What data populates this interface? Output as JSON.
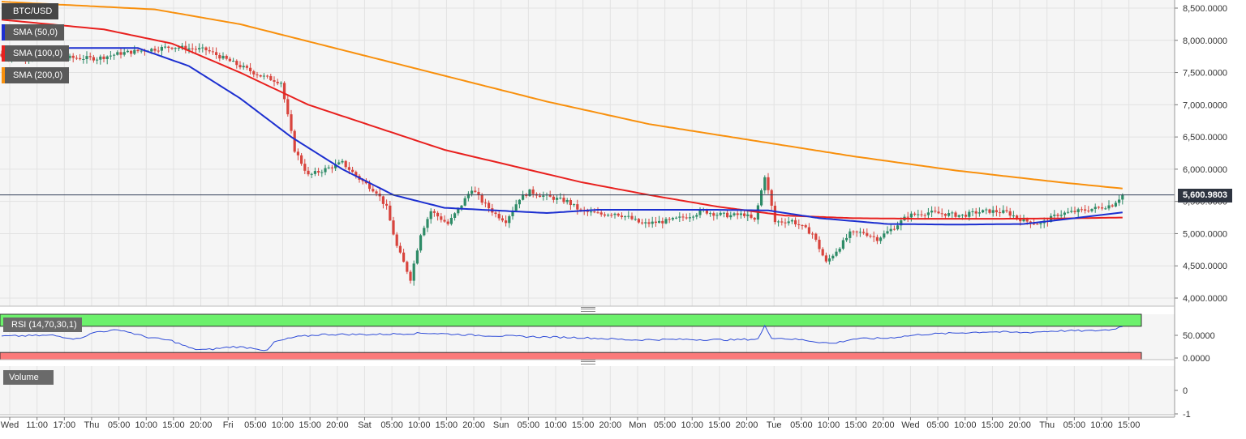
{
  "symbol": "BTC/USD",
  "indicators": {
    "sma50": {
      "label": "SMA (50,0)",
      "color": "#1c2fd0"
    },
    "sma100": {
      "label": "SMA (100,0)",
      "color": "#e8201e"
    },
    "sma200": {
      "label": "SMA (200,0)",
      "color": "#f8900d"
    }
  },
  "panes": {
    "rsi_label": "RSI (14,70,30,1)",
    "volume_label": "Volume"
  },
  "current_price": "5,600.9803",
  "colors": {
    "up": "#2e8b67",
    "down": "#d8443d",
    "rsi_line": "#2f4cd8",
    "overbought_band": "#6cf16c",
    "oversold_band": "#fb7a7a",
    "plot_bg": "#f5f5f5",
    "grid": "#e2e2e2"
  },
  "chart_data": {
    "type": "candlestick",
    "title": "BTC/USD",
    "price_axis": {
      "ylim": [
        3800,
        8700
      ],
      "ticks": [
        "8,500.0000",
        "8,000.0000",
        "7,500.0000",
        "7,000.0000",
        "6,500.0000",
        "6,000.0000",
        "5,500.0000",
        "5,000.0000",
        "4,500.0000",
        "4,000.0000"
      ]
    },
    "rsi_axis": {
      "ylim": [
        0,
        100
      ],
      "ticks": [
        "50.0000",
        "0.0000"
      ],
      "overbought": 70,
      "oversold": 30
    },
    "volume_axis": {
      "ticks": [
        "0",
        "-1"
      ]
    },
    "x_ticks": [
      "Wed",
      "11:00",
      "17:00",
      "Thu",
      "05:00",
      "10:00",
      "15:00",
      "20:00",
      "Fri",
      "05:00",
      "10:00",
      "15:00",
      "20:00",
      "Sat",
      "05:00",
      "10:00",
      "15:00",
      "20:00",
      "Sun",
      "05:00",
      "10:00",
      "15:00",
      "20:00",
      "Mon",
      "05:00",
      "10:00",
      "15:00",
      "20:00",
      "Tue",
      "05:00",
      "10:00",
      "15:00",
      "20:00",
      "Wed",
      "05:00",
      "10:00",
      "15:00",
      "20:00",
      "Thu",
      "05:00",
      "10:00",
      "15:00"
    ],
    "close_anchors": [
      [
        0,
        7750
      ],
      [
        28,
        7720
      ],
      [
        35,
        7800
      ],
      [
        50,
        7900
      ],
      [
        60,
        7850
      ],
      [
        68,
        7650
      ],
      [
        76,
        7450
      ],
      [
        82,
        7350
      ],
      [
        86,
        6300
      ],
      [
        90,
        5900
      ],
      [
        95,
        6000
      ],
      [
        100,
        6100
      ],
      [
        105,
        5850
      ],
      [
        110,
        5650
      ],
      [
        113,
        5400
      ],
      [
        116,
        4800
      ],
      [
        120,
        4300
      ],
      [
        123,
        5000
      ],
      [
        126,
        5350
      ],
      [
        131,
        5150
      ],
      [
        135,
        5450
      ],
      [
        138,
        5700
      ],
      [
        141,
        5500
      ],
      [
        145,
        5300
      ],
      [
        148,
        5200
      ],
      [
        152,
        5550
      ],
      [
        155,
        5650
      ],
      [
        158,
        5600
      ],
      [
        162,
        5550
      ],
      [
        166,
        5500
      ],
      [
        170,
        5350
      ],
      [
        176,
        5300
      ],
      [
        180,
        5320
      ],
      [
        184,
        5250
      ],
      [
        188,
        5150
      ],
      [
        196,
        5200
      ],
      [
        202,
        5280
      ],
      [
        206,
        5350
      ],
      [
        210,
        5300
      ],
      [
        214,
        5280
      ],
      [
        218,
        5300
      ],
      [
        221,
        5200
      ],
      [
        224,
        5900
      ],
      [
        227,
        5180
      ],
      [
        232,
        5200
      ],
      [
        238,
        5000
      ],
      [
        242,
        4550
      ],
      [
        246,
        4800
      ],
      [
        249,
        5000
      ],
      [
        253,
        5020
      ],
      [
        257,
        4920
      ],
      [
        262,
        5100
      ],
      [
        266,
        5280
      ],
      [
        272,
        5330
      ],
      [
        278,
        5300
      ],
      [
        282,
        5280
      ],
      [
        286,
        5330
      ],
      [
        290,
        5350
      ],
      [
        295,
        5330
      ],
      [
        300,
        5200
      ],
      [
        305,
        5150
      ],
      [
        310,
        5300
      ],
      [
        316,
        5350
      ],
      [
        322,
        5400
      ],
      [
        326,
        5450
      ],
      [
        329,
        5600
      ]
    ],
    "rsi_anchors": [
      [
        0,
        48
      ],
      [
        15,
        50
      ],
      [
        22,
        42
      ],
      [
        28,
        58
      ],
      [
        35,
        62
      ],
      [
        42,
        47
      ],
      [
        50,
        38
      ],
      [
        56,
        20
      ],
      [
        60,
        18
      ],
      [
        68,
        25
      ],
      [
        74,
        22
      ],
      [
        78,
        16
      ],
      [
        80,
        35
      ],
      [
        86,
        46
      ],
      [
        94,
        52
      ],
      [
        110,
        52
      ],
      [
        125,
        55
      ],
      [
        140,
        50
      ],
      [
        155,
        47
      ],
      [
        170,
        45
      ],
      [
        185,
        40
      ],
      [
        200,
        41
      ],
      [
        215,
        40
      ],
      [
        222,
        42
      ],
      [
        224,
        70
      ],
      [
        226,
        45
      ],
      [
        235,
        40
      ],
      [
        240,
        35
      ],
      [
        244,
        32
      ],
      [
        250,
        42
      ],
      [
        260,
        44
      ],
      [
        270,
        52
      ],
      [
        280,
        55
      ],
      [
        290,
        58
      ],
      [
        300,
        56
      ],
      [
        310,
        60
      ],
      [
        320,
        60
      ],
      [
        326,
        63
      ],
      [
        329,
        70
      ]
    ],
    "sma50_anchors": [
      [
        0,
        7800
      ],
      [
        20,
        7880
      ],
      [
        40,
        7880
      ],
      [
        55,
        7600
      ],
      [
        70,
        7100
      ],
      [
        85,
        6500
      ],
      [
        100,
        6000
      ],
      [
        115,
        5600
      ],
      [
        130,
        5400
      ],
      [
        145,
        5360
      ],
      [
        160,
        5320
      ],
      [
        175,
        5370
      ],
      [
        195,
        5370
      ],
      [
        210,
        5370
      ],
      [
        225,
        5360
      ],
      [
        240,
        5240
      ],
      [
        260,
        5150
      ],
      [
        280,
        5140
      ],
      [
        300,
        5150
      ],
      [
        315,
        5240
      ],
      [
        329,
        5330
      ]
    ],
    "sma100_anchors": [
      [
        0,
        8320
      ],
      [
        30,
        8170
      ],
      [
        50,
        7950
      ],
      [
        70,
        7500
      ],
      [
        90,
        7000
      ],
      [
        110,
        6650
      ],
      [
        130,
        6300
      ],
      [
        150,
        6050
      ],
      [
        170,
        5800
      ],
      [
        190,
        5600
      ],
      [
        210,
        5420
      ],
      [
        230,
        5280
      ],
      [
        250,
        5240
      ],
      [
        270,
        5230
      ],
      [
        290,
        5230
      ],
      [
        310,
        5235
      ],
      [
        329,
        5250
      ]
    ],
    "sma200_anchors": [
      [
        0,
        8600
      ],
      [
        45,
        8480
      ],
      [
        70,
        8250
      ],
      [
        100,
        7850
      ],
      [
        130,
        7450
      ],
      [
        160,
        7050
      ],
      [
        190,
        6700
      ],
      [
        220,
        6450
      ],
      [
        250,
        6200
      ],
      [
        280,
        5980
      ],
      [
        310,
        5800
      ],
      [
        329,
        5700
      ]
    ]
  }
}
